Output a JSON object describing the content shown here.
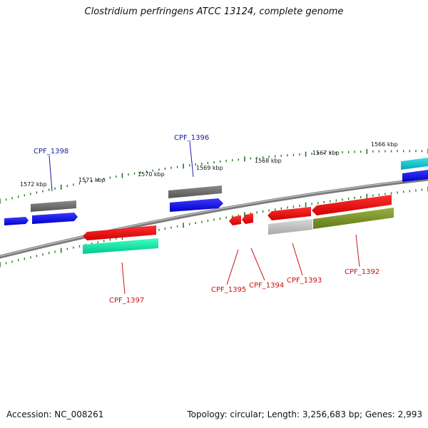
{
  "title": "Clostridium perfringens ATCC 13124, complete genome",
  "footer": {
    "accession": "Accession: NC_008261",
    "summary": "Topology: circular; Length: 3,256,683 bp; Genes: 2,993"
  },
  "colors": {
    "backbone": "#808080",
    "tick": "#1f7a1f",
    "forward_label": "#1a1aa6",
    "reverse_label": "#cc1111"
  },
  "kbp_labels": [
    "1572 kbp",
    "1571 kbp",
    "1570 kbp",
    "1569 kbp",
    "1568 kbp",
    "1567 kbp",
    "1566 kbp"
  ],
  "gene_labels": [
    {
      "text": "CPF_1398",
      "strand": "forward"
    },
    {
      "text": "CPF_1396",
      "strand": "forward"
    },
    {
      "text": "CPF_1397",
      "strand": "reverse"
    },
    {
      "text": "CPF_1395",
      "strand": "reverse"
    },
    {
      "text": "CPF_1394",
      "strand": "reverse"
    },
    {
      "text": "CPF_1393",
      "strand": "reverse"
    },
    {
      "text": "CPF_1392",
      "strand": "reverse"
    }
  ]
}
